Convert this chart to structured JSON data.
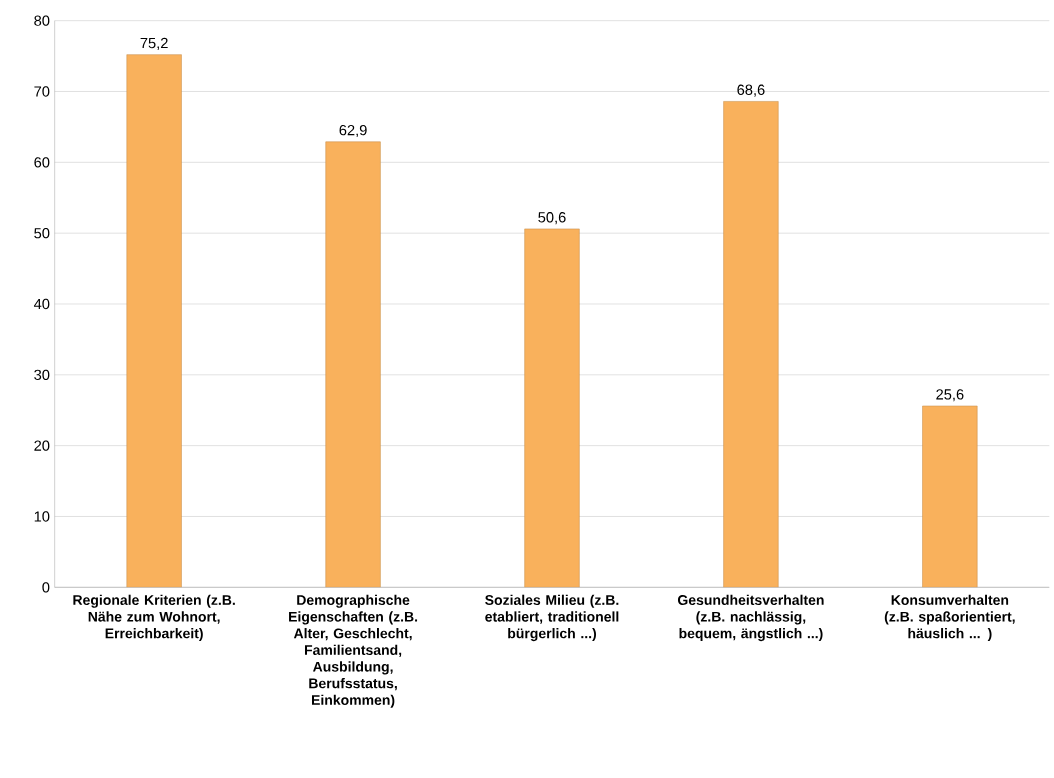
{
  "chart_data": {
    "type": "bar",
    "categories": [
      "Regionale Kriterien (z.B. Nähe zum Wohnort, Erreichbarkeit)",
      "Demographische Eigenschaften (z.B. Alter, Geschlecht, Familientsand, Ausbildung, Berufsstatus, Einkommen)",
      "Soziales Milieu (z.B. etabliert, traditionell bürgerlich ...)",
      "Gesundheitsverhalten (z.B. nachlässig, bequem, ängstlich ...)",
      "Konsumverhalten (z.B. spaßorientiert, häuslich ... )"
    ],
    "values": [
      75.2,
      62.9,
      50.6,
      68.6,
      25.6
    ],
    "value_labels": [
      "75,2",
      "62,9",
      "50,6",
      "68,6",
      "25,6"
    ],
    "color": "#f9b15c",
    "ylim": [
      0,
      80
    ],
    "yticks": [
      0,
      10,
      20,
      30,
      40,
      50,
      60,
      70,
      80
    ],
    "grid": "y"
  }
}
